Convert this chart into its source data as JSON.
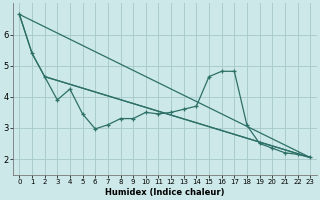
{
  "background_color": "#cce8e8",
  "grid_color": "#aacccc",
  "line_color": "#2d7068",
  "xlabel": "Humidex (Indice chaleur)",
  "ylim": [
    1.5,
    7.0
  ],
  "xlim": [
    -0.5,
    23.5
  ],
  "yticks": [
    2,
    3,
    4,
    5,
    6
  ],
  "xticks": [
    0,
    1,
    2,
    3,
    4,
    5,
    6,
    7,
    8,
    9,
    10,
    11,
    12,
    13,
    14,
    15,
    16,
    17,
    18,
    19,
    20,
    21,
    22,
    23
  ],
  "series_x": [
    0,
    1,
    2,
    3,
    4,
    5,
    6,
    7,
    8,
    9,
    10,
    11,
    12,
    13,
    14,
    15,
    16,
    17,
    18,
    19,
    20,
    21,
    22,
    23
  ],
  "series_y": [
    6.65,
    5.4,
    4.65,
    3.9,
    4.25,
    3.45,
    2.97,
    3.1,
    3.3,
    3.3,
    3.5,
    3.45,
    3.5,
    3.6,
    3.7,
    4.65,
    4.82,
    4.82,
    3.08,
    2.5,
    2.35,
    2.2,
    2.15,
    2.05
  ],
  "line1_x": [
    0,
    23
  ],
  "line1_y": [
    6.65,
    2.05
  ],
  "line2_x": [
    2,
    23
  ],
  "line2_y": [
    4.65,
    2.05
  ],
  "line3_x": [
    0,
    1,
    2,
    23
  ],
  "line3_y": [
    6.65,
    5.4,
    4.65,
    2.05
  ]
}
